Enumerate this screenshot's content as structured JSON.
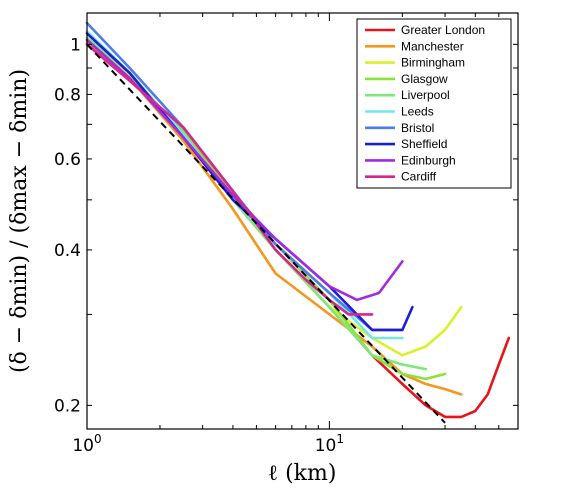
{
  "chart_data": {
    "type": "line",
    "xscale": "log",
    "yscale": "log",
    "xlim": [
      1,
      60
    ],
    "ylim": [
      0.18,
      1.15
    ],
    "xlabel": "ℓ (km)",
    "ylabel": "(δ − δmin) / (δmax − δmin)",
    "x_ticks": [
      {
        "value": 1,
        "label": "10",
        "sup": "0"
      },
      {
        "value": 10,
        "label": "10",
        "sup": "1"
      }
    ],
    "y_ticks": [
      {
        "value": 0.2,
        "label": "0.2"
      },
      {
        "value": 0.4,
        "label": "0.4"
      },
      {
        "value": 0.6,
        "label": "0.6"
      },
      {
        "value": 0.8,
        "label": "0.8"
      },
      {
        "value": 1,
        "label": "1"
      }
    ],
    "grid": false,
    "legend_position": "top-right",
    "reference_line": {
      "style": "dashed",
      "color": "#000000",
      "x": [
        1,
        30
      ],
      "y": [
        1.0,
        0.185
      ]
    },
    "series": [
      {
        "name": "Greater London",
        "color": "#e8131b",
        "x": [
          1,
          1.5,
          2.5,
          4,
          6,
          10,
          15,
          20,
          25,
          30,
          35,
          40,
          45,
          50,
          55
        ],
        "y": [
          1.0,
          0.86,
          0.66,
          0.5,
          0.4,
          0.31,
          0.25,
          0.22,
          0.2,
          0.19,
          0.19,
          0.195,
          0.21,
          0.24,
          0.27
        ]
      },
      {
        "name": "Manchester",
        "color": "#f5961e",
        "x": [
          1,
          1.5,
          2.5,
          4,
          6,
          10,
          15,
          20,
          25,
          30,
          35
        ],
        "y": [
          1.01,
          0.86,
          0.65,
          0.48,
          0.36,
          0.3,
          0.26,
          0.23,
          0.22,
          0.215,
          0.21
        ]
      },
      {
        "name": "Birmingham",
        "color": "#d9f02a",
        "x": [
          1,
          1.5,
          2.5,
          4,
          6,
          10,
          15,
          20,
          25,
          30,
          35
        ],
        "y": [
          1.02,
          0.87,
          0.67,
          0.5,
          0.4,
          0.31,
          0.27,
          0.25,
          0.26,
          0.28,
          0.31
        ]
      },
      {
        "name": "Glasgow",
        "color": "#8ce23a",
        "x": [
          1,
          1.5,
          2.5,
          4,
          6,
          10,
          15,
          20,
          25,
          30
        ],
        "y": [
          1.0,
          0.85,
          0.68,
          0.51,
          0.41,
          0.32,
          0.25,
          0.23,
          0.225,
          0.23
        ]
      },
      {
        "name": "Liverpool",
        "color": "#7ee87a",
        "x": [
          1,
          1.5,
          2.5,
          4,
          6,
          10,
          15,
          20,
          25
        ],
        "y": [
          1.03,
          0.88,
          0.67,
          0.5,
          0.4,
          0.31,
          0.25,
          0.24,
          0.235
        ]
      },
      {
        "name": "Leeds",
        "color": "#72e6e8",
        "x": [
          1,
          1.5,
          2.5,
          4,
          6,
          10,
          15,
          20
        ],
        "y": [
          1.06,
          0.88,
          0.67,
          0.5,
          0.41,
          0.33,
          0.27,
          0.27
        ]
      },
      {
        "name": "Bristol",
        "color": "#4d7de8",
        "x": [
          1,
          1.5,
          2.5,
          4,
          6,
          10,
          15,
          20
        ],
        "y": [
          1.1,
          0.9,
          0.69,
          0.52,
          0.41,
          0.33,
          0.28,
          0.28
        ]
      },
      {
        "name": "Sheffield",
        "color": "#1c1fcf",
        "x": [
          1,
          1.5,
          2.5,
          4,
          6,
          10,
          15,
          20,
          22
        ],
        "y": [
          1.05,
          0.88,
          0.66,
          0.5,
          0.42,
          0.34,
          0.28,
          0.28,
          0.31
        ]
      },
      {
        "name": "Edinburgh",
        "color": "#a22be0",
        "x": [
          1,
          1.5,
          2.5,
          4,
          6,
          10,
          13,
          16,
          20
        ],
        "y": [
          1.02,
          0.86,
          0.66,
          0.51,
          0.42,
          0.34,
          0.32,
          0.33,
          0.38
        ]
      },
      {
        "name": "Cardiff",
        "color": "#d62691",
        "x": [
          1,
          1.5,
          2.5,
          4,
          6,
          8,
          10,
          12,
          15
        ],
        "y": [
          1.0,
          0.85,
          0.69,
          0.52,
          0.4,
          0.35,
          0.32,
          0.3,
          0.3
        ]
      }
    ]
  }
}
